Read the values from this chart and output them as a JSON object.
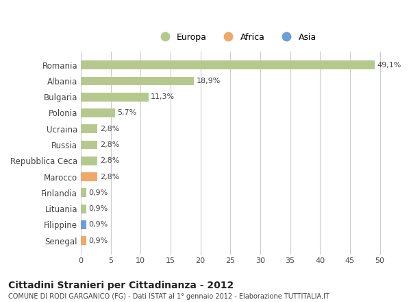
{
  "countries": [
    "Romania",
    "Albania",
    "Bulgaria",
    "Polonia",
    "Ucraina",
    "Russia",
    "Repubblica Ceca",
    "Marocco",
    "Finlandia",
    "Lituania",
    "Filippine",
    "Senegal"
  ],
  "values": [
    49.1,
    18.9,
    11.3,
    5.7,
    2.8,
    2.8,
    2.8,
    2.8,
    0.9,
    0.9,
    0.9,
    0.9
  ],
  "labels": [
    "49,1%",
    "18,9%",
    "11,3%",
    "5,7%",
    "2,8%",
    "2,8%",
    "2,8%",
    "2,8%",
    "0,9%",
    "0,9%",
    "0,9%",
    "0,9%"
  ],
  "continents": [
    "Europa",
    "Europa",
    "Europa",
    "Europa",
    "Europa",
    "Europa",
    "Europa",
    "Africa",
    "Europa",
    "Europa",
    "Asia",
    "Africa"
  ],
  "colors": {
    "Europa": "#b5c98e",
    "Africa": "#f0a868",
    "Asia": "#6a9fd8"
  },
  "legend_items": [
    "Europa",
    "Africa",
    "Asia"
  ],
  "xlim": [
    0,
    52
  ],
  "xticks": [
    0,
    5,
    10,
    15,
    20,
    25,
    30,
    35,
    40,
    45,
    50
  ],
  "title": "Cittadini Stranieri per Cittadinanza - 2012",
  "subtitle": "COMUNE DI RODI GARGANICO (FG) - Dati ISTAT al 1° gennaio 2012 - Elaborazione TUTTITALIA.IT",
  "bg_color": "#ffffff",
  "grid_color": "#cccccc"
}
